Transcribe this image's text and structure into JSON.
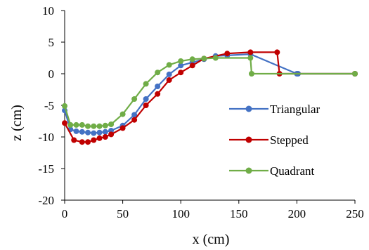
{
  "chart_data": {
    "type": "line",
    "xlabel": "x (cm)",
    "ylabel": "z (cm)",
    "xlim": [
      0,
      250
    ],
    "ylim": [
      -20,
      10
    ],
    "xticks": [
      "0",
      "50",
      "100",
      "150",
      "200",
      "250"
    ],
    "yticks": [
      "-20",
      "-15",
      "-10",
      "-5",
      "0",
      "5",
      "10"
    ],
    "grid": false,
    "legend_position": "right",
    "series": [
      {
        "name": "Triangular",
        "color": "#4472C4",
        "x": [
          0,
          5,
          10,
          15,
          20,
          25,
          30,
          35,
          40,
          50,
          60,
          70,
          80,
          90,
          100,
          110,
          120,
          130,
          140,
          160,
          200,
          201,
          250
        ],
        "y": [
          -5.8,
          -8.8,
          -9.1,
          -9.2,
          -9.3,
          -9.4,
          -9.3,
          -9.2,
          -9.0,
          -8.2,
          -6.5,
          -4.0,
          -2.0,
          -0.1,
          1.3,
          1.8,
          2.3,
          2.8,
          2.9,
          3.1,
          0.0,
          0.0,
          0.0
        ]
      },
      {
        "name": "Stepped",
        "color": "#C00000",
        "x": [
          0,
          8,
          15,
          20,
          25,
          30,
          35,
          40,
          50,
          60,
          70,
          80,
          90,
          100,
          110,
          120,
          140,
          160,
          183,
          185,
          250
        ],
        "y": [
          -7.8,
          -10.5,
          -10.8,
          -10.8,
          -10.5,
          -10.2,
          -10.0,
          -9.6,
          -8.6,
          -7.3,
          -5.0,
          -3.2,
          -1.0,
          0.2,
          1.3,
          2.4,
          3.2,
          3.4,
          3.4,
          0.0,
          0.0
        ]
      },
      {
        "name": "Quadrant",
        "color": "#70AD47",
        "x": [
          0,
          5,
          10,
          15,
          20,
          25,
          30,
          35,
          40,
          50,
          60,
          70,
          80,
          90,
          100,
          110,
          120,
          130,
          160,
          161,
          250
        ],
        "y": [
          -5.1,
          -8.1,
          -8.1,
          -8.1,
          -8.3,
          -8.3,
          -8.3,
          -8.2,
          -8.0,
          -6.4,
          -4.0,
          -1.6,
          0.2,
          1.4,
          2.0,
          2.3,
          2.4,
          2.5,
          2.5,
          0.0,
          0.0
        ]
      }
    ]
  }
}
